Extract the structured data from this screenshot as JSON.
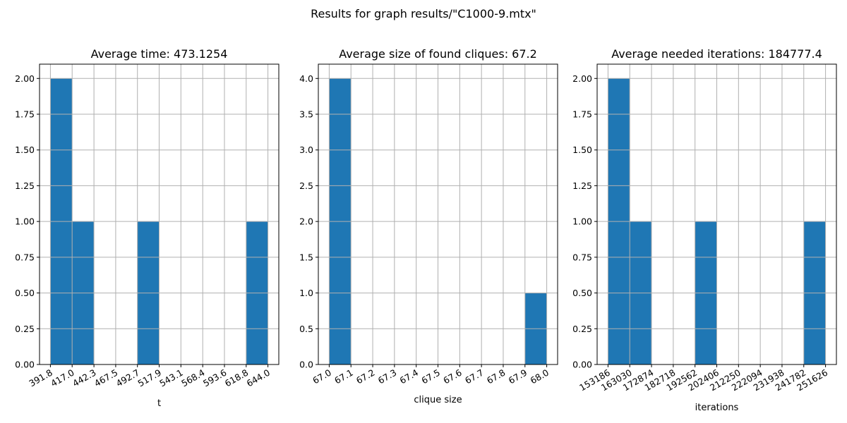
{
  "figure": {
    "suptitle": "Results for graph results/\"C1000-9.mtx\""
  },
  "chart_data": [
    {
      "type": "bar",
      "title": "Average time: 473.1254",
      "xlabel": "t",
      "ylabel": "",
      "bin_edges": [
        391.8,
        417.0,
        442.3,
        467.5,
        492.7,
        517.9,
        543.1,
        568.4,
        593.6,
        618.8,
        644.0
      ],
      "xtick_labels": [
        "391.8",
        "417.0",
        "442.3",
        "467.5",
        "492.7",
        "517.9",
        "543.1",
        "568.4",
        "593.6",
        "618.8",
        "644.0"
      ],
      "values": [
        2,
        1,
        0,
        0,
        1,
        0,
        0,
        0,
        0,
        1
      ],
      "ylim": [
        0,
        2.1
      ],
      "yticks": [
        0,
        0.25,
        0.5,
        0.75,
        1.0,
        1.25,
        1.5,
        1.75,
        2.0
      ],
      "ytick_labels": [
        "0.00",
        "0.25",
        "0.50",
        "0.75",
        "1.00",
        "1.25",
        "1.50",
        "1.75",
        "2.00"
      ],
      "grid": true,
      "color": "#1f77b4"
    },
    {
      "type": "bar",
      "title": "Average size of found cliques: 67.2",
      "xlabel": "clique size",
      "ylabel": "",
      "bin_edges": [
        67.0,
        67.1,
        67.2,
        67.3,
        67.4,
        67.5,
        67.6,
        67.7,
        67.8,
        67.9,
        68.0
      ],
      "xtick_labels": [
        "67.0",
        "67.1",
        "67.2",
        "67.3",
        "67.4",
        "67.5",
        "67.6",
        "67.7",
        "67.8",
        "67.9",
        "68.0"
      ],
      "values": [
        4,
        0,
        0,
        0,
        0,
        0,
        0,
        0,
        0,
        1
      ],
      "ylim": [
        0,
        4.2
      ],
      "yticks": [
        0,
        0.5,
        1.0,
        1.5,
        2.0,
        2.5,
        3.0,
        3.5,
        4.0
      ],
      "ytick_labels": [
        "0.0",
        "0.5",
        "1.0",
        "1.5",
        "2.0",
        "2.5",
        "3.0",
        "3.5",
        "4.0"
      ],
      "grid": true,
      "color": "#1f77b4"
    },
    {
      "type": "bar",
      "title": "Average needed iterations: 184777.4",
      "xlabel": "iterations",
      "ylabel": "",
      "bin_edges": [
        153186,
        163030,
        172874,
        182718,
        192562,
        202406,
        212250,
        222094,
        231938,
        241782,
        251626
      ],
      "xtick_labels": [
        "153186",
        "163030",
        "172874",
        "182718",
        "192562",
        "202406",
        "212250",
        "222094",
        "231938",
        "241782",
        "251626"
      ],
      "values": [
        2,
        1,
        0,
        0,
        1,
        0,
        0,
        0,
        0,
        1
      ],
      "ylim": [
        0,
        2.1
      ],
      "yticks": [
        0,
        0.25,
        0.5,
        0.75,
        1.0,
        1.25,
        1.5,
        1.75,
        2.0
      ],
      "ytick_labels": [
        "0.00",
        "0.25",
        "0.50",
        "0.75",
        "1.00",
        "1.25",
        "1.50",
        "1.75",
        "2.00"
      ],
      "grid": true,
      "color": "#1f77b4"
    }
  ]
}
